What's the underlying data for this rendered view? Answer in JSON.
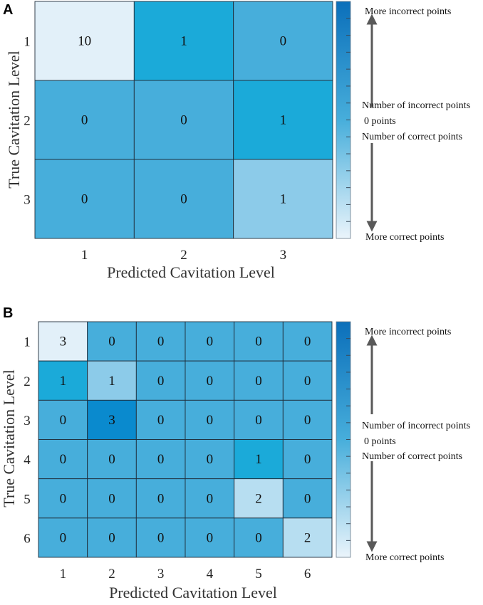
{
  "chart_data": [
    {
      "type": "heatmap",
      "panel_label": "A",
      "title": "",
      "xlabel": "Predicted Cavitation Level",
      "ylabel": "True Cavitation Level",
      "x_ticks": [
        "1",
        "2",
        "3"
      ],
      "y_ticks": [
        "1",
        "2",
        "3"
      ],
      "matrix": [
        [
          10,
          1,
          0
        ],
        [
          0,
          0,
          1
        ],
        [
          0,
          0,
          1
        ]
      ],
      "colorbar": {
        "top_label": "More incorrect points",
        "mid_upper_label": "Number of incorrect points",
        "mid_label": "0 points",
        "mid_lower_label": "Number of correct points",
        "bottom_label": "More correct points"
      }
    },
    {
      "type": "heatmap",
      "panel_label": "B",
      "title": "",
      "xlabel": "Predicted Cavitation Level",
      "ylabel": "True Cavitation Level",
      "x_ticks": [
        "1",
        "2",
        "3",
        "4",
        "5",
        "6"
      ],
      "y_ticks": [
        "1",
        "2",
        "3",
        "4",
        "5",
        "6"
      ],
      "matrix": [
        [
          3,
          0,
          0,
          0,
          0,
          0
        ],
        [
          1,
          1,
          0,
          0,
          0,
          0
        ],
        [
          0,
          3,
          0,
          0,
          0,
          0
        ],
        [
          0,
          0,
          0,
          0,
          1,
          0
        ],
        [
          0,
          0,
          0,
          0,
          2,
          0
        ],
        [
          0,
          0,
          0,
          0,
          0,
          2
        ]
      ],
      "colorbar": {
        "top_label": "More incorrect points",
        "mid_upper_label": "Number of incorrect points",
        "mid_label": "0 points",
        "mid_lower_label": "Number of correct points",
        "bottom_label": "More correct points"
      }
    }
  ],
  "colors": {
    "neutral": "#47aedb",
    "incorrect_low": "#1baad9",
    "incorrect_high": "#0a8ace",
    "correct_low": "#8ccbe9",
    "correct_high": "#e2f0f9",
    "cbar_top": "#0b6fba",
    "cbar_bottom": "#eaf4fb",
    "arrow": "#595959"
  }
}
